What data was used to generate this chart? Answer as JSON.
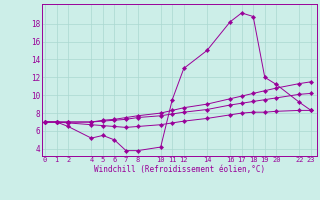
{
  "xlabel": "Windchill (Refroidissement éolien,°C)",
  "bg_color": "#cceee8",
  "grid_color": "#aad8d0",
  "line_color": "#990099",
  "x_ticks": [
    0,
    1,
    2,
    4,
    5,
    6,
    7,
    8,
    10,
    11,
    12,
    14,
    16,
    17,
    18,
    19,
    20,
    22,
    23
  ],
  "y_ticks": [
    4,
    6,
    8,
    10,
    12,
    14,
    16,
    18
  ],
  "xlim": [
    -0.3,
    23.5
  ],
  "ylim": [
    3.2,
    20.2
  ],
  "series": [
    {
      "x": [
        0,
        1,
        2,
        4,
        5,
        6,
        7,
        8,
        10,
        11,
        12,
        14,
        16,
        17,
        18,
        19,
        20,
        22,
        23
      ],
      "y": [
        7.0,
        7.0,
        6.5,
        5.2,
        5.5,
        5.0,
        3.8,
        3.8,
        4.2,
        9.5,
        13.0,
        15.0,
        18.2,
        19.2,
        18.8,
        12.0,
        11.2,
        9.2,
        8.3
      ]
    },
    {
      "x": [
        0,
        1,
        2,
        4,
        5,
        6,
        7,
        8,
        10,
        11,
        12,
        14,
        16,
        17,
        18,
        19,
        20,
        22,
        23
      ],
      "y": [
        7.0,
        7.0,
        7.0,
        7.0,
        7.2,
        7.3,
        7.5,
        7.7,
        8.0,
        8.3,
        8.6,
        9.0,
        9.6,
        9.9,
        10.2,
        10.5,
        10.8,
        11.3,
        11.5
      ]
    },
    {
      "x": [
        0,
        1,
        2,
        4,
        5,
        6,
        7,
        8,
        10,
        11,
        12,
        14,
        16,
        17,
        18,
        19,
        20,
        22,
        23
      ],
      "y": [
        7.0,
        7.0,
        7.0,
        7.0,
        7.1,
        7.2,
        7.3,
        7.5,
        7.7,
        7.9,
        8.1,
        8.4,
        8.9,
        9.1,
        9.3,
        9.5,
        9.7,
        10.1,
        10.2
      ]
    },
    {
      "x": [
        0,
        1,
        2,
        4,
        5,
        6,
        7,
        8,
        10,
        11,
        12,
        14,
        16,
        17,
        18,
        19,
        20,
        22,
        23
      ],
      "y": [
        7.0,
        7.0,
        6.9,
        6.7,
        6.6,
        6.5,
        6.4,
        6.5,
        6.7,
        6.9,
        7.1,
        7.4,
        7.8,
        8.0,
        8.1,
        8.1,
        8.2,
        8.3,
        8.3
      ]
    }
  ]
}
